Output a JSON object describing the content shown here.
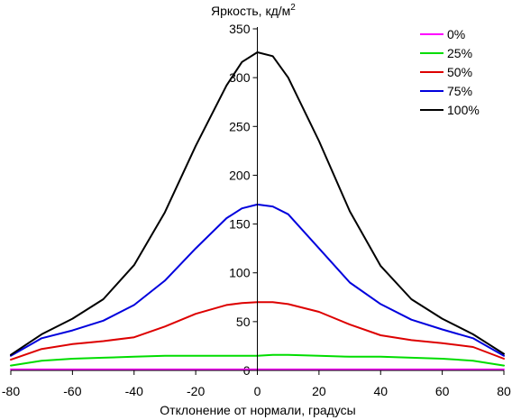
{
  "chart_data": {
    "type": "line",
    "ylabel": "Яркость, кд/м",
    "ylabel_sup": "2",
    "xlabel": "Отклонение от нормали, градусы",
    "xlim": [
      -80,
      80
    ],
    "ylim": [
      0,
      350
    ],
    "x_ticks": [
      -80,
      -60,
      -40,
      -20,
      0,
      20,
      40,
      60,
      80
    ],
    "y_ticks": [
      0,
      50,
      100,
      150,
      200,
      250,
      300,
      350
    ],
    "legend_position": "top-right",
    "grid": false,
    "x": [
      -80,
      -70,
      -60,
      -50,
      -40,
      -30,
      -20,
      -10,
      -5,
      0,
      5,
      10,
      20,
      30,
      40,
      50,
      60,
      70,
      80
    ],
    "series": [
      {
        "name": "0%",
        "color": "#ff00ff",
        "values": [
          1,
          1,
          1,
          1,
          1,
          1,
          1,
          1,
          1,
          1,
          1,
          1,
          1,
          1,
          1,
          1,
          1,
          1,
          1
        ]
      },
      {
        "name": "25%",
        "color": "#00dd00",
        "values": [
          5,
          10,
          12,
          13,
          14,
          15,
          15,
          15,
          15,
          15,
          16,
          16,
          15,
          14,
          14,
          13,
          12,
          10,
          5
        ]
      },
      {
        "name": "50%",
        "color": "#dd0000",
        "values": [
          11,
          22,
          27,
          30,
          34,
          45,
          58,
          67,
          69,
          70,
          70,
          68,
          60,
          47,
          36,
          31,
          28,
          24,
          12
        ]
      },
      {
        "name": "75%",
        "color": "#0000dd",
        "values": [
          15,
          33,
          41,
          51,
          67,
          92,
          125,
          156,
          166,
          170,
          168,
          160,
          125,
          90,
          68,
          52,
          42,
          33,
          15
        ]
      },
      {
        "name": "100%",
        "color": "#000000",
        "values": [
          16,
          37,
          53,
          73,
          108,
          162,
          230,
          292,
          316,
          326,
          322,
          300,
          235,
          163,
          107,
          73,
          53,
          37,
          17
        ]
      }
    ]
  }
}
